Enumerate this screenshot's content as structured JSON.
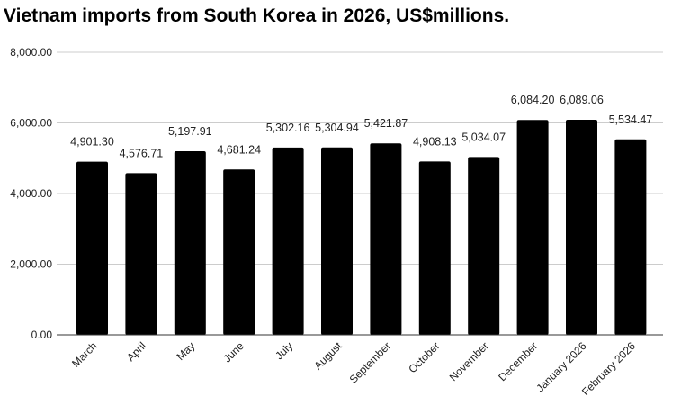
{
  "chart_data": {
    "type": "bar",
    "title": "Vietnam imports from South Korea in 2026, US$millions.",
    "xlabel": "",
    "ylabel": "",
    "categories": [
      "March",
      "April",
      "May",
      "June",
      "July",
      "August",
      "September",
      "October",
      "November",
      "December",
      "January 2026",
      "February 2026"
    ],
    "values": [
      4901.3,
      4576.71,
      5197.91,
      4681.24,
      5302.16,
      5304.94,
      5421.87,
      4908.13,
      5034.07,
      6084.2,
      6089.06,
      5534.47
    ],
    "data_labels": [
      "4,901.30",
      "4,576.71",
      "5,197.91",
      "4,681.24",
      "5,302.16",
      "5,304.94",
      "5,421.87",
      "4,908.13",
      "5,034.07",
      "6,084.20",
      "6,089.06",
      "5,534.47"
    ],
    "yticks": [
      0,
      2000,
      4000,
      6000,
      8000
    ],
    "ytick_labels": [
      "0.00",
      "2,000.00",
      "4,000.00",
      "6,000.00",
      "8,000.00"
    ],
    "ylim": [
      0,
      8000
    ],
    "grid": true,
    "legend": "none",
    "bar_color": "#000000",
    "grid_color": "#cccccc"
  }
}
